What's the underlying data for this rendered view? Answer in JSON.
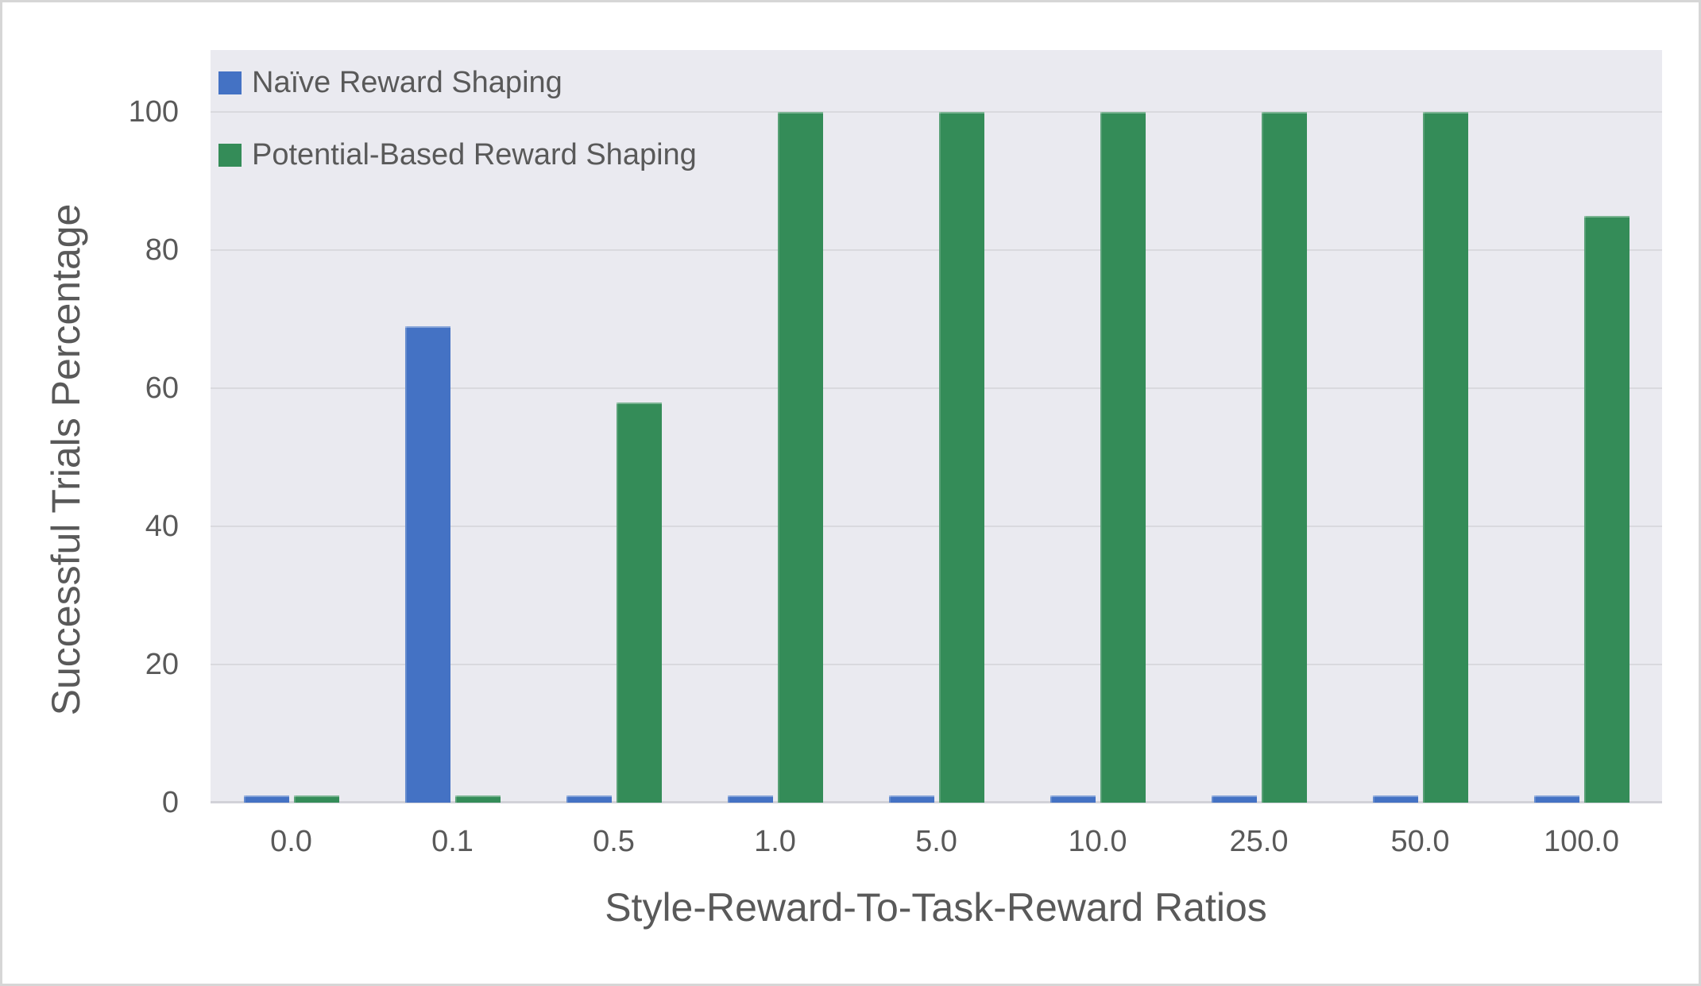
{
  "chart_data": {
    "type": "bar",
    "title": "",
    "categories": [
      "0.0",
      "0.1",
      "0.5",
      "1.0",
      "5.0",
      "10.0",
      "25.0",
      "50.0",
      "100.0"
    ],
    "series": [
      {
        "name": "Naïve Reward Shaping",
        "color": "#4472c4",
        "values": [
          1,
          69,
          1,
          1,
          1,
          1,
          1,
          1,
          1
        ]
      },
      {
        "name": "Potential-Based Reward Shaping",
        "color": "#348c58",
        "values": [
          1,
          1,
          58,
          100,
          100,
          100,
          100,
          100,
          85
        ]
      }
    ],
    "xlabel": "Style-Reward-To-Task-Reward Ratios",
    "ylabel": "Successful Trials Percentage",
    "yticks": [
      0,
      20,
      40,
      60,
      80,
      100
    ],
    "ylim": [
      0,
      109
    ],
    "grid": true,
    "legend_position": "top-left"
  },
  "colors": {
    "series_blue": "#4472c4",
    "series_green": "#348c58",
    "text": "#595959",
    "plot_background": "#eaeaf0",
    "gridline": "#d9d9de",
    "axis_line": "#d2d2d8",
    "figure_border": "#d6d6d6",
    "page_background": "#ffffff"
  }
}
